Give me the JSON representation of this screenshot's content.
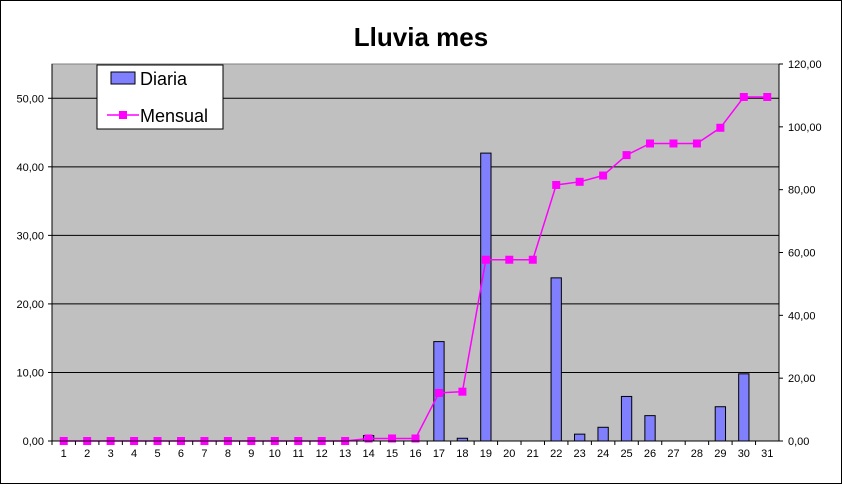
{
  "chart_data": {
    "type": "bar",
    "title": "Lluvia mes",
    "categories": [
      "1",
      "2",
      "3",
      "4",
      "5",
      "6",
      "7",
      "8",
      "9",
      "10",
      "11",
      "12",
      "13",
      "14",
      "15",
      "16",
      "17",
      "18",
      "19",
      "20",
      "21",
      "22",
      "23",
      "24",
      "25",
      "26",
      "27",
      "28",
      "29",
      "30",
      "31"
    ],
    "series": [
      {
        "name": "Diaria",
        "type": "bar",
        "axis": "left",
        "color": "#8080ff",
        "values": [
          0,
          0,
          0,
          0,
          0,
          0,
          0,
          0,
          0,
          0,
          0,
          0,
          0,
          0.8,
          0,
          0,
          14.5,
          0.4,
          42.0,
          0,
          0,
          23.8,
          1.0,
          2.0,
          6.5,
          3.7,
          0,
          0,
          5.0,
          9.8,
          0
        ]
      },
      {
        "name": "Mensual",
        "type": "line",
        "axis": "right",
        "color": "#ff00ff",
        "values": [
          0,
          0,
          0,
          0,
          0,
          0,
          0,
          0,
          0,
          0,
          0,
          0,
          0,
          0.8,
          0.8,
          0.8,
          15.3,
          15.7,
          57.7,
          57.7,
          57.7,
          81.5,
          82.5,
          84.5,
          91.0,
          94.7,
          94.7,
          94.7,
          99.7,
          109.5,
          109.5
        ]
      }
    ],
    "y_left": {
      "min": 0,
      "max": 55,
      "ticks": [
        "0,00",
        "10,00",
        "20,00",
        "30,00",
        "40,00",
        "50,00"
      ],
      "tick_values": [
        0,
        10,
        20,
        30,
        40,
        50
      ]
    },
    "y_right": {
      "min": 0,
      "max": 120,
      "ticks": [
        "0,00",
        "20,00",
        "40,00",
        "60,00",
        "80,00",
        "100,00",
        "120,00"
      ],
      "tick_values": [
        0,
        20,
        40,
        60,
        80,
        100,
        120
      ]
    },
    "grid": true,
    "legend": "top-left",
    "plot_background": "#c0c0c0"
  }
}
